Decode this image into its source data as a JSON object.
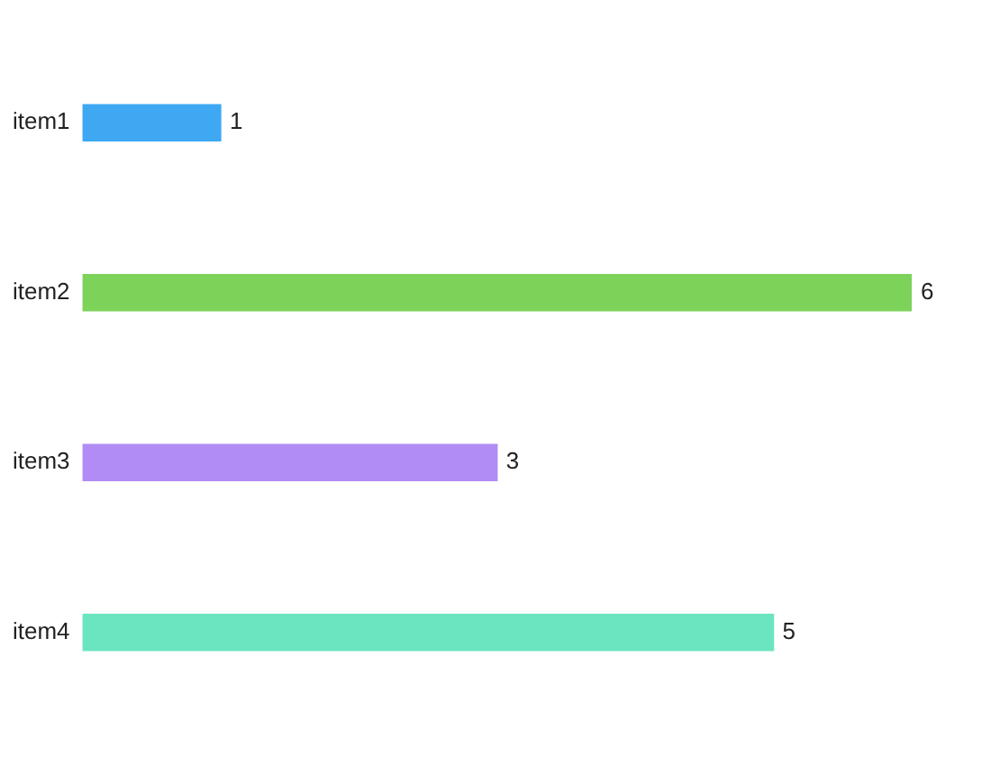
{
  "chart_data": {
    "type": "bar",
    "orientation": "horizontal",
    "categories": [
      "item1",
      "item2",
      "item3",
      "item4"
    ],
    "values": [
      1,
      6,
      3,
      5
    ],
    "colors": [
      "#3ea8f2",
      "#7dd35a",
      "#b18cf5",
      "#6ae5bf"
    ],
    "xlim": [
      0,
      6
    ],
    "legend": false,
    "tick_labels": "y",
    "data_labels": true
  }
}
